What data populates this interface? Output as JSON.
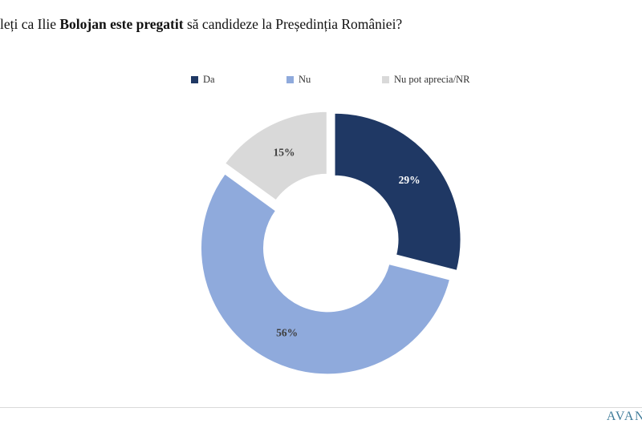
{
  "title": {
    "prefix": "leți ca Ilie ",
    "bold": "Bolojan este pregatit",
    "suffix": " să candideze la Președinția României?"
  },
  "chart_data": {
    "type": "pie",
    "subtype": "donut",
    "title": "leți ca Ilie Bolojan este pregatit să candideze la Președinția României?",
    "legend_position": "top",
    "start_angle_deg": 0,
    "direction": "clockwise",
    "hole_radius_ratio": 0.5,
    "slices": [
      {
        "label": "Da",
        "value": 29,
        "color": "#1f3864",
        "label_color": "#ffffff"
      },
      {
        "label": "Nu",
        "value": 56,
        "color": "#8faadc",
        "label_color": "#3f3f3f"
      },
      {
        "label": "Nu pot aprecia/NR",
        "value": 15,
        "color": "#d9d9d9",
        "label_color": "#3f3f3f"
      }
    ]
  },
  "footer": {
    "brand": "AVAN",
    "brand_color": "#3e7b99",
    "rule_color": "#d9d9d9"
  }
}
